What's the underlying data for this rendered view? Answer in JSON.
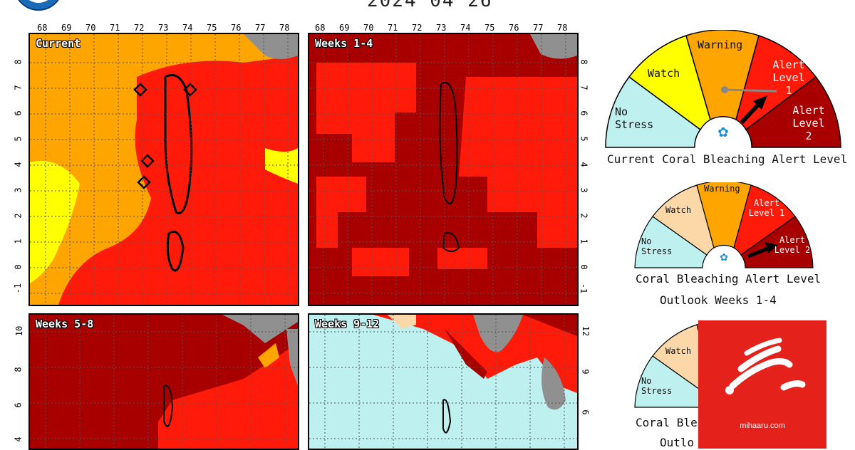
{
  "header": {
    "title_text": "2024 04 26"
  },
  "maps": [
    {
      "label": "Current",
      "x_ticks": [
        "68",
        "69",
        "70",
        "71",
        "72",
        "73",
        "74",
        "75",
        "76",
        "77",
        "78"
      ],
      "y_ticks": [
        "8",
        "7",
        "6",
        "5",
        "4",
        "3",
        "2",
        "1",
        "0",
        "-1"
      ]
    },
    {
      "label": "Weeks 1-4",
      "x_ticks": [
        "68",
        "69",
        "70",
        "71",
        "72",
        "73",
        "74",
        "75",
        "76",
        "77",
        "78"
      ],
      "y_ticks": [
        "8",
        "7",
        "6",
        "5",
        "4",
        "3",
        "2",
        "1",
        "0",
        "-1"
      ]
    },
    {
      "label": "Weeks 5-8",
      "y_ticks": [
        "10",
        "8",
        "6",
        "4"
      ]
    },
    {
      "label": "Weeks 9-12",
      "y_ticks": [
        "12",
        "9",
        "6"
      ]
    }
  ],
  "gauges": [
    {
      "levels": [
        "No Stress",
        "Watch",
        "Warning",
        "Alert Level 1",
        "Alert Level 2"
      ],
      "caption_lines": [
        "Current Coral Bleaching Alert Level"
      ],
      "pointer_level": "Alert Level 1"
    },
    {
      "levels": [
        "No Stress",
        "Watch",
        "Warning",
        "Alert Level 1",
        "Alert Level 2"
      ],
      "caption_lines": [
        "Coral Bleaching Alert Level",
        "Outlook Weeks 1-4"
      ],
      "pointer_level": "Alert Level 2"
    },
    {
      "levels": [
        "No Stress",
        "Watch"
      ],
      "caption_lines": [
        "Coral Blea",
        "Outlo"
      ]
    }
  ],
  "colors": {
    "no_stress": "#bff0f0",
    "watch": "#ffff00",
    "warning": "#ffa500",
    "alert1": "#ff1a0a",
    "alert2": "#a80000",
    "land": "#909090",
    "watch_outlook": "#fcd8a8"
  },
  "watermark": {
    "text": "mihaaru.com",
    "icon": "mihaaru-logo-icon"
  }
}
